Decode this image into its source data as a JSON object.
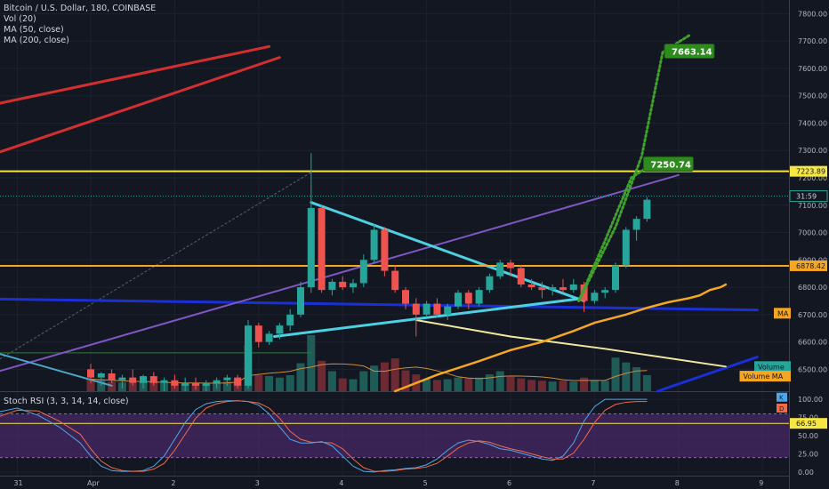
{
  "header": {
    "title": "Bitcoin / U.S. Dollar, 180, COINBASE",
    "indicators": [
      "Vol (20)",
      "MA (50, close)",
      "MA (200, close)"
    ]
  },
  "colors": {
    "background": "#131722",
    "grid": "#1e2230",
    "up": "#26a69a",
    "down": "#ef5350",
    "price_line": "#26a69a",
    "yellow_line": "#f5e642",
    "orange_line": "#f5a623",
    "blue_line": "#1a2fd6",
    "purple_line": "#7e57c2",
    "cyan_line": "#4dd0e1",
    "red_line": "#d32f2f",
    "green_target": "#2e8b1e",
    "rsi_k": "#4fa7e8",
    "rsi_d": "#f06a4a",
    "rsi_band": "#4a2a6b"
  },
  "chart_data": [
    {
      "type": "candlestick",
      "title": "Bitcoin / U.S. Dollar, 180, COINBASE",
      "ylim": [
        6420,
        7850
      ],
      "y_ticks": [
        6500,
        6600,
        6700,
        6800,
        6900,
        7000,
        7100,
        7200,
        7300,
        7400,
        7500,
        7600,
        7700,
        7800
      ],
      "x_tick_labels": [
        "31",
        "Apr",
        "2",
        "3",
        "4",
        "5",
        "6",
        "7",
        "8",
        "9"
      ],
      "x_tick_positions": [
        -7,
        0,
        8,
        16,
        24,
        32,
        40,
        48,
        56,
        64
      ],
      "grid": true,
      "candles": [
        {
          "o": 6500,
          "h": 6520,
          "l": 6450,
          "c": 6470,
          "v": 150
        },
        {
          "o": 6470,
          "h": 6490,
          "l": 6440,
          "c": 6485,
          "v": 140
        },
        {
          "o": 6485,
          "h": 6500,
          "l": 6450,
          "c": 6460,
          "v": 120
        },
        {
          "o": 6460,
          "h": 6480,
          "l": 6430,
          "c": 6470,
          "v": 110
        },
        {
          "o": 6470,
          "h": 6500,
          "l": 6440,
          "c": 6450,
          "v": 100
        },
        {
          "o": 6450,
          "h": 6480,
          "l": 6430,
          "c": 6475,
          "v": 110
        },
        {
          "o": 6475,
          "h": 6490,
          "l": 6440,
          "c": 6450,
          "v": 120
        },
        {
          "o": 6450,
          "h": 6470,
          "l": 6420,
          "c": 6460,
          "v": 100
        },
        {
          "o": 6460,
          "h": 6480,
          "l": 6430,
          "c": 6440,
          "v": 90
        },
        {
          "o": 6440,
          "h": 6470,
          "l": 6420,
          "c": 6450,
          "v": 95
        },
        {
          "o": 6450,
          "h": 6470,
          "l": 6425,
          "c": 6440,
          "v": 105
        },
        {
          "o": 6440,
          "h": 6460,
          "l": 6420,
          "c": 6450,
          "v": 100
        },
        {
          "o": 6450,
          "h": 6470,
          "l": 6430,
          "c": 6460,
          "v": 110
        },
        {
          "o": 6460,
          "h": 6480,
          "l": 6440,
          "c": 6470,
          "v": 120
        },
        {
          "o": 6470,
          "h": 6480,
          "l": 6430,
          "c": 6440,
          "v": 150
        },
        {
          "o": 6440,
          "h": 6680,
          "l": 6430,
          "c": 6660,
          "v": 580
        },
        {
          "o": 6660,
          "h": 6670,
          "l": 6580,
          "c": 6600,
          "v": 200
        },
        {
          "o": 6600,
          "h": 6640,
          "l": 6590,
          "c": 6630,
          "v": 190
        },
        {
          "o": 6630,
          "h": 6670,
          "l": 6610,
          "c": 6660,
          "v": 170
        },
        {
          "o": 6660,
          "h": 6720,
          "l": 6640,
          "c": 6700,
          "v": 200
        },
        {
          "o": 6700,
          "h": 6820,
          "l": 6690,
          "c": 6800,
          "v": 350
        },
        {
          "o": 6800,
          "h": 7290,
          "l": 6780,
          "c": 7090,
          "v": 700
        },
        {
          "o": 7090,
          "h": 7100,
          "l": 6780,
          "c": 6790,
          "v": 380
        },
        {
          "o": 6790,
          "h": 6830,
          "l": 6770,
          "c": 6820,
          "v": 250
        },
        {
          "o": 6820,
          "h": 6840,
          "l": 6790,
          "c": 6800,
          "v": 160
        },
        {
          "o": 6800,
          "h": 6830,
          "l": 6780,
          "c": 6815,
          "v": 150
        },
        {
          "o": 6815,
          "h": 6920,
          "l": 6800,
          "c": 6900,
          "v": 250
        },
        {
          "o": 6900,
          "h": 7030,
          "l": 6890,
          "c": 7010,
          "v": 320
        },
        {
          "o": 7010,
          "h": 7020,
          "l": 6840,
          "c": 6860,
          "v": 360
        },
        {
          "o": 6860,
          "h": 6880,
          "l": 6780,
          "c": 6790,
          "v": 410
        },
        {
          "o": 6790,
          "h": 6800,
          "l": 6720,
          "c": 6740,
          "v": 260
        },
        {
          "o": 6740,
          "h": 6760,
          "l": 6620,
          "c": 6700,
          "v": 210
        },
        {
          "o": 6700,
          "h": 6750,
          "l": 6690,
          "c": 6740,
          "v": 150
        },
        {
          "o": 6740,
          "h": 6760,
          "l": 6690,
          "c": 6700,
          "v": 140
        },
        {
          "o": 6700,
          "h": 6740,
          "l": 6680,
          "c": 6730,
          "v": 150
        },
        {
          "o": 6730,
          "h": 6790,
          "l": 6720,
          "c": 6780,
          "v": 170
        },
        {
          "o": 6780,
          "h": 6790,
          "l": 6720,
          "c": 6740,
          "v": 160
        },
        {
          "o": 6740,
          "h": 6800,
          "l": 6730,
          "c": 6790,
          "v": 170
        },
        {
          "o": 6790,
          "h": 6850,
          "l": 6780,
          "c": 6840,
          "v": 210
        },
        {
          "o": 6840,
          "h": 6900,
          "l": 6830,
          "c": 6890,
          "v": 250
        },
        {
          "o": 6890,
          "h": 6900,
          "l": 6840,
          "c": 6870,
          "v": 180
        },
        {
          "o": 6870,
          "h": 6880,
          "l": 6800,
          "c": 6810,
          "v": 160
        },
        {
          "o": 6810,
          "h": 6830,
          "l": 6790,
          "c": 6800,
          "v": 140
        },
        {
          "o": 6800,
          "h": 6820,
          "l": 6760,
          "c": 6790,
          "v": 130
        },
        {
          "o": 6790,
          "h": 6810,
          "l": 6770,
          "c": 6800,
          "v": 120
        },
        {
          "o": 6800,
          "h": 6830,
          "l": 6780,
          "c": 6790,
          "v": 130
        },
        {
          "o": 6790,
          "h": 6830,
          "l": 6780,
          "c": 6810,
          "v": 120
        },
        {
          "o": 6810,
          "h": 6820,
          "l": 6710,
          "c": 6750,
          "v": 170
        },
        {
          "o": 6750,
          "h": 6790,
          "l": 6740,
          "c": 6780,
          "v": 140
        },
        {
          "o": 6780,
          "h": 6800,
          "l": 6760,
          "c": 6790,
          "v": 130
        },
        {
          "o": 6790,
          "h": 6890,
          "l": 6780,
          "c": 6880,
          "v": 420
        },
        {
          "o": 6880,
          "h": 7020,
          "l": 6870,
          "c": 7010,
          "v": 360
        },
        {
          "o": 7010,
          "h": 7060,
          "l": 6970,
          "c": 7050,
          "v": 300
        },
        {
          "o": 7050,
          "h": 7130,
          "l": 7040,
          "c": 7120,
          "v": 200
        }
      ],
      "lines": {
        "ma50": [
          [
            29,
            6420
          ],
          [
            33,
            6480
          ],
          [
            37,
            6530
          ],
          [
            40,
            6570
          ],
          [
            43,
            6600
          ],
          [
            46,
            6640
          ],
          [
            48,
            6670
          ],
          [
            51,
            6700
          ],
          [
            53,
            6725
          ],
          [
            55,
            6745
          ],
          [
            57,
            6760
          ],
          [
            58,
            6770
          ],
          [
            59,
            6790
          ],
          [
            60,
            6800
          ],
          [
            60.5,
            6810
          ]
        ],
        "yellow_descending": [
          [
            31,
            6680
          ],
          [
            40,
            6620
          ],
          [
            49,
            6575
          ],
          [
            60.5,
            6510
          ]
        ],
        "blue_descending": [
          [
            -9,
            6757
          ],
          [
            63.5,
            6717
          ]
        ],
        "blue_ascending": [
          [
            54,
            6420
          ],
          [
            63.5,
            6545
          ]
        ],
        "purple_ascending": [
          [
            -9,
            6490
          ],
          [
            56,
            7210
          ]
        ],
        "cyan_upper": [
          [
            21,
            7110
          ],
          [
            47,
            6750
          ]
        ],
        "cyan_lower": [
          [
            17.5,
            6620
          ],
          [
            47,
            6760
          ]
        ],
        "cyan_lowleft": [
          [
            -9,
            6560
          ],
          [
            2,
            6440
          ]
        ],
        "red_line1": [
          [
            -9,
            7470
          ],
          [
            17,
            7680
          ]
        ],
        "red_line2": [
          [
            -9,
            7290
          ],
          [
            18,
            7640
          ]
        ],
        "green_hline": [
          [
            -9,
            6560
          ],
          [
            21,
            6560
          ]
        ],
        "green_path_upper": [
          [
            46.5,
            6750
          ],
          [
            50,
            7020
          ],
          [
            52.5,
            7280
          ],
          [
            54.5,
            7660
          ],
          [
            57,
            7720
          ]
        ],
        "green_path_lower": [
          [
            46.5,
            6750
          ],
          [
            49,
            6970
          ],
          [
            51.5,
            7200
          ],
          [
            53.5,
            7250
          ]
        ],
        "grey_dotted": [
          [
            -9,
            6530
          ],
          [
            21,
            7220
          ]
        ]
      },
      "hlines": [
        {
          "value": 7223.89,
          "label": "7223.89",
          "color": "#f5e642"
        },
        {
          "value": 6878.42,
          "label": "6878.42",
          "color": "#f5a623"
        },
        {
          "value": 7133,
          "label": "31:59",
          "color": "#26a69a"
        }
      ],
      "annotations": [
        {
          "text": "7663.14",
          "x": 55,
          "y": 7663.14
        },
        {
          "text": "7250.74",
          "x": 53,
          "y": 7250.74
        }
      ],
      "axis_badges": [
        {
          "text": "MA",
          "color": "#f5a623"
        },
        {
          "text": "Volume",
          "color": "#26a69a"
        },
        {
          "text": "Volume MA",
          "color": "#f5a623"
        }
      ]
    },
    {
      "type": "line",
      "title": "Stoch RSI (3, 3, 14, 14, close)",
      "ylim": [
        -5,
        110
      ],
      "y_ticks": [
        0,
        25,
        50,
        75,
        100
      ],
      "y_tick_labels": [
        "0.00",
        "25.00",
        "50.00",
        "75.00",
        "100.00"
      ],
      "band": [
        20,
        80
      ],
      "current_value_label": "66.95",
      "badges": [
        {
          "text": "K",
          "color": "#4fa7e8"
        },
        {
          "text": "D",
          "color": "#f06a4a"
        }
      ],
      "series": [
        {
          "name": "K",
          "x": [
            -9,
            -7,
            -5,
            -3,
            -1,
            0,
            1,
            2,
            3,
            4,
            5,
            6,
            7,
            8,
            9,
            10,
            11,
            12,
            13,
            14,
            15,
            16,
            17,
            18,
            19,
            20,
            21,
            22,
            23,
            24,
            25,
            26,
            27,
            28,
            29,
            30,
            31,
            32,
            33,
            34,
            35,
            36,
            37,
            38,
            39,
            40,
            41,
            42,
            43,
            44,
            45,
            46,
            47,
            48,
            49,
            50,
            51,
            52,
            53
          ],
          "values": [
            82,
            88,
            78,
            62,
            40,
            22,
            8,
            2,
            1,
            1,
            2,
            8,
            22,
            45,
            68,
            86,
            94,
            97,
            98,
            98,
            97,
            92,
            80,
            62,
            45,
            40,
            40,
            42,
            36,
            22,
            8,
            1,
            0,
            2,
            3,
            5,
            6,
            10,
            18,
            30,
            40,
            44,
            42,
            38,
            32,
            30,
            26,
            22,
            18,
            16,
            22,
            40,
            70,
            90,
            100,
            100,
            100,
            100,
            100
          ]
        },
        {
          "name": "D",
          "x": [
            -9,
            -7,
            -5,
            -3,
            -1,
            0,
            1,
            2,
            3,
            4,
            5,
            6,
            7,
            8,
            9,
            10,
            11,
            12,
            13,
            14,
            15,
            16,
            17,
            18,
            19,
            20,
            21,
            22,
            23,
            24,
            25,
            26,
            27,
            28,
            29,
            30,
            31,
            32,
            33,
            34,
            35,
            36,
            37,
            38,
            39,
            40,
            41,
            42,
            43,
            44,
            45,
            46,
            47,
            48,
            49,
            50,
            51,
            52,
            53
          ],
          "values": [
            75,
            85,
            84,
            70,
            52,
            32,
            15,
            6,
            2,
            1,
            1,
            4,
            12,
            30,
            52,
            74,
            88,
            94,
            97,
            98,
            97,
            95,
            88,
            74,
            56,
            45,
            41,
            41,
            40,
            32,
            18,
            6,
            1,
            1,
            2,
            4,
            5,
            7,
            12,
            22,
            33,
            40,
            43,
            41,
            36,
            32,
            29,
            25,
            21,
            18,
            18,
            26,
            45,
            68,
            85,
            93,
            96,
            97,
            97
          ]
        }
      ]
    }
  ]
}
